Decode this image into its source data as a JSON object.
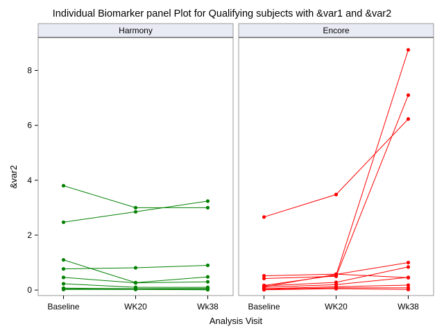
{
  "chart_data": {
    "type": "line",
    "title": "Individual Biomarker panel Plot for Qualifying subjects with &var1 and &var2",
    "xlabel": "Analysis Visit",
    "ylabel": "&var2",
    "categories": [
      "Baseline",
      "WK20",
      "Wk38"
    ],
    "ylim": [
      -0.2,
      9.2
    ],
    "yticks": [
      0,
      2,
      4,
      6,
      8
    ],
    "grid": false,
    "panels": [
      {
        "name": "Harmony",
        "color": "#008000",
        "series": [
          {
            "values": [
              3.8,
              3.0,
              3.0
            ]
          },
          {
            "values": [
              2.47,
              2.85,
              3.24
            ]
          },
          {
            "values": [
              1.1,
              0.27,
              0.48
            ]
          },
          {
            "values": [
              0.77,
              0.81,
              0.9
            ]
          },
          {
            "values": [
              0.46,
              0.26,
              0.3
            ]
          },
          {
            "values": [
              0.23,
              0.1,
              0.1
            ]
          },
          {
            "values": [
              0.07,
              0.05,
              0.06
            ]
          },
          {
            "values": [
              0.04,
              0.03,
              0.03
            ]
          },
          {
            "values": [
              0.02,
              0.02,
              0.01
            ]
          }
        ]
      },
      {
        "name": "Encore",
        "color": "#ff0000",
        "series": [
          {
            "values": [
              2.66,
              3.48,
              6.23
            ]
          },
          {
            "values": [
              0.52,
              0.58,
              0.45
            ]
          },
          {
            "values": [
              0.42,
              0.5,
              7.1
            ]
          },
          {
            "values": [
              0.17,
              0.54,
              8.75
            ]
          },
          {
            "values": [
              0.12,
              0.57,
              1.0
            ]
          },
          {
            "values": [
              0.15,
              0.28,
              0.84
            ]
          },
          {
            "values": [
              0.1,
              0.2,
              0.46
            ]
          },
          {
            "values": [
              0.05,
              0.12,
              0.18
            ]
          },
          {
            "values": [
              0.03,
              0.08,
              0.08
            ]
          },
          {
            "values": [
              0.01,
              0.05,
              0.02
            ]
          }
        ]
      }
    ]
  }
}
